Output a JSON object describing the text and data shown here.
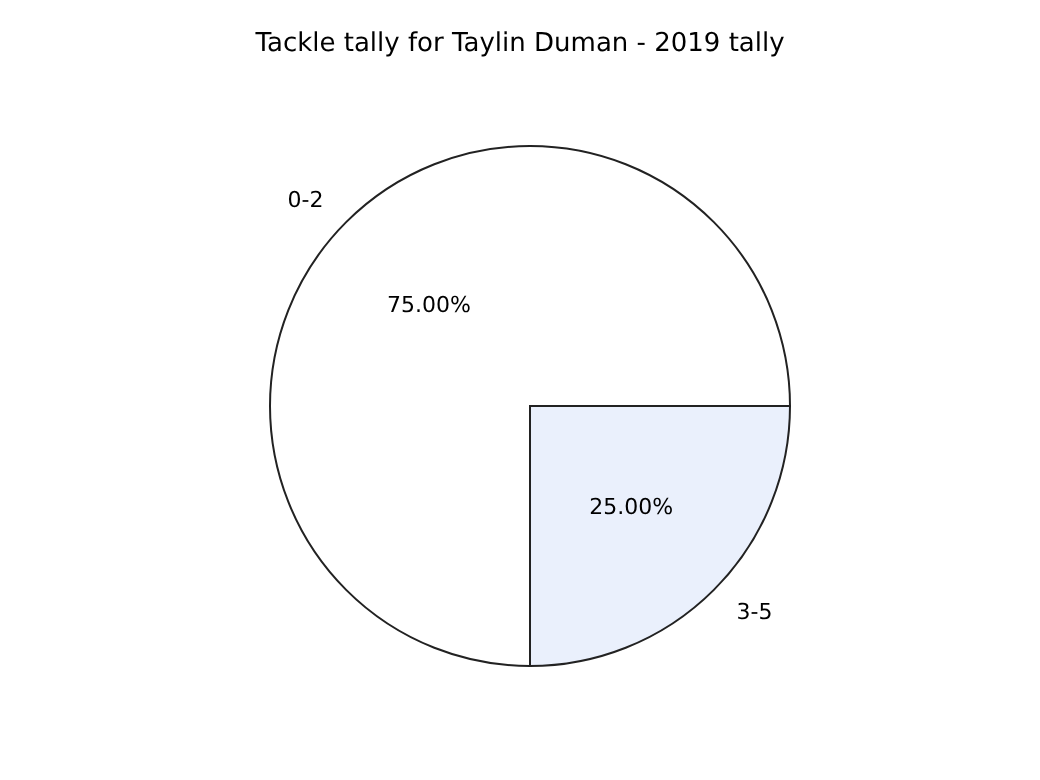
{
  "chart_data": {
    "type": "pie",
    "title": "Tackle tally for Taylin Duman - 2019 tally",
    "categories": [
      "0-2",
      "3-5"
    ],
    "values": [
      75,
      25
    ],
    "value_labels": [
      "75.00%",
      "25.00%"
    ],
    "colors": [
      "#ffffff",
      "#eaf0fc"
    ],
    "legend": false
  }
}
